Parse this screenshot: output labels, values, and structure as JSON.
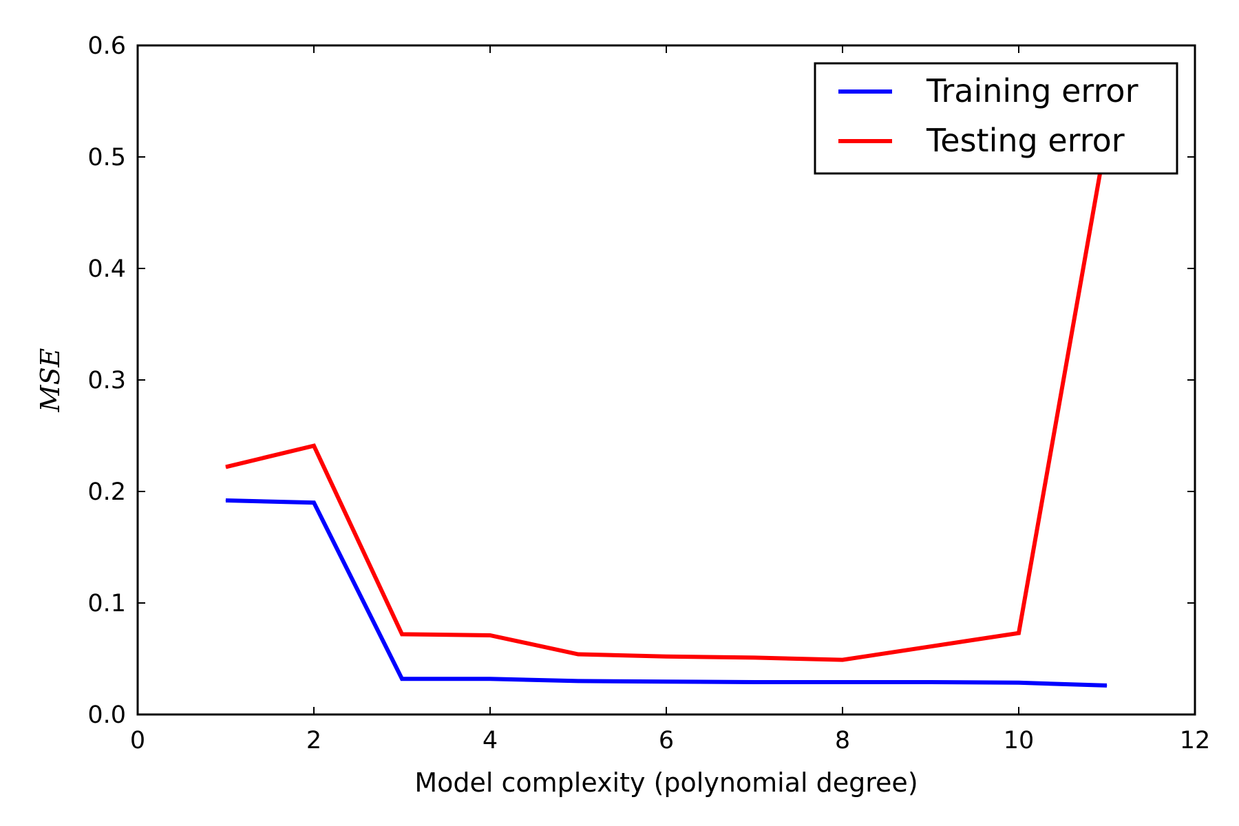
{
  "chart_data": {
    "type": "line",
    "xlabel": "Model complexity (polynomial degree)",
    "ylabel": "MSE",
    "xlim": [
      0,
      12
    ],
    "ylim": [
      0,
      0.6
    ],
    "xticks": [
      "0",
      "2",
      "4",
      "6",
      "8",
      "10",
      "12"
    ],
    "yticks": [
      "0.0",
      "0.1",
      "0.2",
      "0.3",
      "0.4",
      "0.5",
      "0.6"
    ],
    "grid": false,
    "legend_position": "top-right",
    "series": [
      {
        "name": "Training error",
        "color": "#0000ff",
        "x": [
          1,
          2,
          3,
          4,
          5,
          6,
          7,
          8,
          9,
          10,
          11
        ],
        "y": [
          0.192,
          0.19,
          0.032,
          0.032,
          0.03,
          0.0295,
          0.029,
          0.029,
          0.029,
          0.0285,
          0.026
        ]
      },
      {
        "name": "Testing error",
        "color": "#ff0000",
        "x": [
          1,
          2,
          3,
          4,
          5,
          6,
          7,
          8,
          9,
          10,
          11
        ],
        "y": [
          0.222,
          0.241,
          0.072,
          0.071,
          0.054,
          0.052,
          0.051,
          0.049,
          0.061,
          0.073,
          0.52
        ]
      }
    ]
  }
}
